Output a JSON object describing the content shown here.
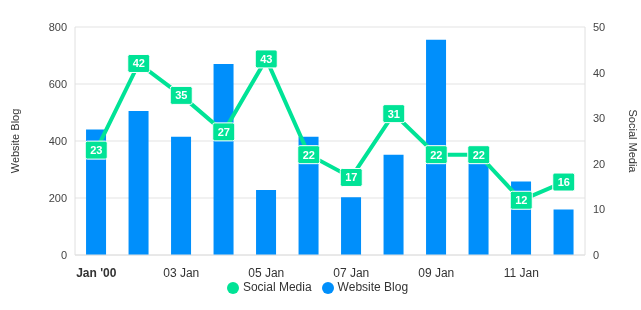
{
  "chart_data": {
    "type": "bar",
    "categories": [
      "Jan '00",
      null,
      "03 Jan",
      null,
      "05 Jan",
      null,
      "07 Jan",
      null,
      "09 Jan",
      null,
      "11 Jan",
      null
    ],
    "series": [
      {
        "name": "Website Blog",
        "type": "bar",
        "color": "#008FFB",
        "values": [
          440,
          505,
          415,
          670,
          228,
          415,
          203,
          352,
          755,
          320,
          258,
          160
        ]
      },
      {
        "name": "Social Media",
        "type": "line",
        "axis": "y2",
        "color": "#00E396",
        "data_labels": true,
        "values": [
          23,
          42,
          35,
          27,
          43,
          22,
          17,
          31,
          22,
          22,
          12,
          16
        ]
      }
    ],
    "ylabel": "Website Blog",
    "y2label": "Social Media",
    "ylim": [
      0,
      800
    ],
    "yticks": [
      0,
      200,
      400,
      600,
      800
    ],
    "y2lim": [
      0,
      50
    ],
    "y2ticks": [
      0,
      10,
      20,
      30,
      40,
      50
    ],
    "grid": true,
    "legend": "bottom"
  }
}
